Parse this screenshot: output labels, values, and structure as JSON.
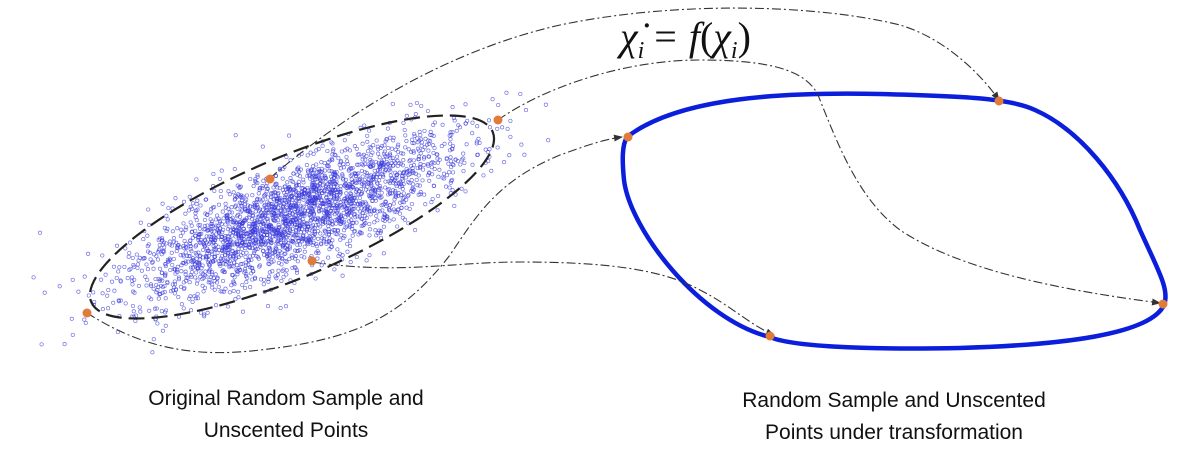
{
  "equation": {
    "lhs": "χ̇",
    "lhs_sub": "i",
    "eq": "=",
    "func": "f",
    "arg": "χ",
    "arg_sub": "i"
  },
  "captions": {
    "left": [
      "Original Random Sample and",
      "Unscented Points"
    ],
    "right": [
      "Random Sample and Unscented",
      "Points under transformation"
    ]
  },
  "colors": {
    "scatter": "#3b3bdc",
    "curve": "#0a1edc",
    "sigma_point": "#e07b39",
    "ellipse": "#222222",
    "arrow": "#333333"
  }
}
